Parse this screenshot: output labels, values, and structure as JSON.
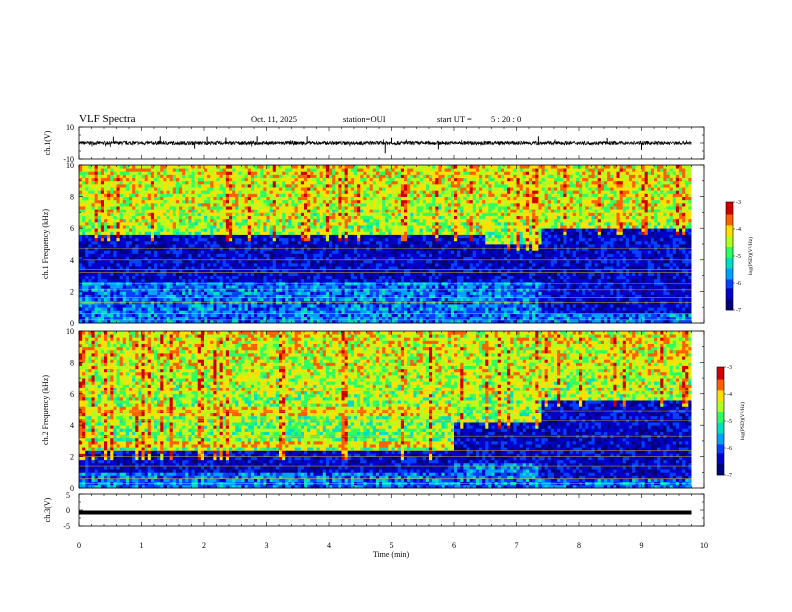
{
  "header": {
    "title": "VLF Spectra",
    "date": "Oct. 11, 2025",
    "station": "station=OUI",
    "start_label": "start  UT =",
    "start_time": "5 : 20 : 0"
  },
  "chart_data": [
    {
      "type": "line",
      "ylabel": "ch.1(V)",
      "ylim": [
        -10,
        10
      ],
      "yticks": [
        "10",
        "-10"
      ],
      "x_range_min": [
        0,
        9.8
      ],
      "baseline_v": 0,
      "noise_band_v": [
        -1.2,
        1.2
      ],
      "spikes": [
        {
          "t": 0.55,
          "v": 4.0
        },
        {
          "t": 1.3,
          "v": 4.2
        },
        {
          "t": 1.85,
          "v": -3.5
        },
        {
          "t": 2.05,
          "v": 4.0
        },
        {
          "t": 2.35,
          "v": 3.4
        },
        {
          "t": 2.85,
          "v": 4.2
        },
        {
          "t": 3.65,
          "v": 4.2
        },
        {
          "t": 4.9,
          "v": -6.5
        },
        {
          "t": 5.0,
          "v": 3.3
        },
        {
          "t": 5.75,
          "v": -4.0
        },
        {
          "t": 7.35,
          "v": 4.2
        },
        {
          "t": 8.45,
          "v": 3.2
        },
        {
          "t": 9.0,
          "v": -4.3
        }
      ]
    },
    {
      "type": "heatmap",
      "ylabel": "ch.1 Frequency (kHz)",
      "ylim": [
        0,
        10
      ],
      "yticks": [
        "0",
        "2",
        "4",
        "6",
        "8",
        "10"
      ],
      "x_range_min": [
        0,
        9.8
      ],
      "colorbar": {
        "label": "log(PSD)(V²/Hz)",
        "range": [
          -7,
          -3
        ],
        "ticks": [
          "-3",
          "-4",
          "-5",
          "-6",
          "-7"
        ]
      },
      "segments": [
        {
          "t": [
            0,
            6.5
          ],
          "quiet_band_khz": [
            2.5,
            5.5
          ],
          "emission_top_khz": 10
        },
        {
          "t": [
            6.5,
            7.4
          ],
          "quiet_band_khz": [
            2.5,
            5.0
          ],
          "emission_top_khz": 10
        },
        {
          "t": [
            7.4,
            9.8
          ],
          "quiet_band_khz": [
            0.5,
            6.0
          ],
          "emission_top_khz": 10
        }
      ],
      "bands_khz": [
        0.2,
        0.6,
        1.3,
        1.6,
        2.1,
        2.5,
        3.2,
        3.4,
        4.0,
        4.7,
        7.0
      ]
    },
    {
      "type": "heatmap",
      "ylabel": "ch.2 Frequency (kHz)",
      "ylim": [
        0,
        10
      ],
      "yticks": [
        "0",
        "2",
        "4",
        "6",
        "8",
        "10"
      ],
      "x_range_min": [
        0,
        9.8
      ],
      "colorbar": {
        "label": "log(PSD)(V²/Hz)",
        "range": [
          -7,
          -3
        ],
        "ticks": [
          "-3",
          "-4",
          "-5",
          "-6",
          "-7"
        ]
      },
      "segments": [
        {
          "t": [
            0,
            6.0
          ],
          "strong_bands_khz": [
            [
              4.6,
              5.2
            ],
            [
              2.6,
              3.0
            ]
          ],
          "quiet_band_khz": [
            1.0,
            2.3
          ]
        },
        {
          "t": [
            6.0,
            7.4
          ],
          "strong_bands_khz": [],
          "quiet_band_khz": [
            1.5,
            4.2
          ]
        },
        {
          "t": [
            7.4,
            9.8
          ],
          "strong_bands_khz": [],
          "quiet_band_khz": [
            0.5,
            5.5
          ]
        }
      ],
      "bands_khz": [
        0.3,
        0.6,
        1.4,
        2.0,
        2.4,
        3.3,
        4.3,
        4.9,
        6.2
      ]
    },
    {
      "type": "line",
      "ylabel": "ch.3(V)",
      "ylim": [
        -5,
        5
      ],
      "yticks": [
        "5",
        "0",
        "-5"
      ],
      "x_range_min": [
        0,
        9.8
      ],
      "value_v": -0.8
    }
  ],
  "xaxis": {
    "label": "Time  (min)",
    "range": [
      0,
      10
    ],
    "ticks": [
      "0",
      "1",
      "2",
      "3",
      "4",
      "5",
      "6",
      "7",
      "8",
      "9",
      "10"
    ]
  },
  "colors": {
    "colormap": [
      "#00007a",
      "#0000c8",
      "#0040ff",
      "#00a0ff",
      "#00e0c0",
      "#30ff60",
      "#b0ff20",
      "#ffe000",
      "#ff6000",
      "#d00000"
    ],
    "trace": "#000000"
  }
}
